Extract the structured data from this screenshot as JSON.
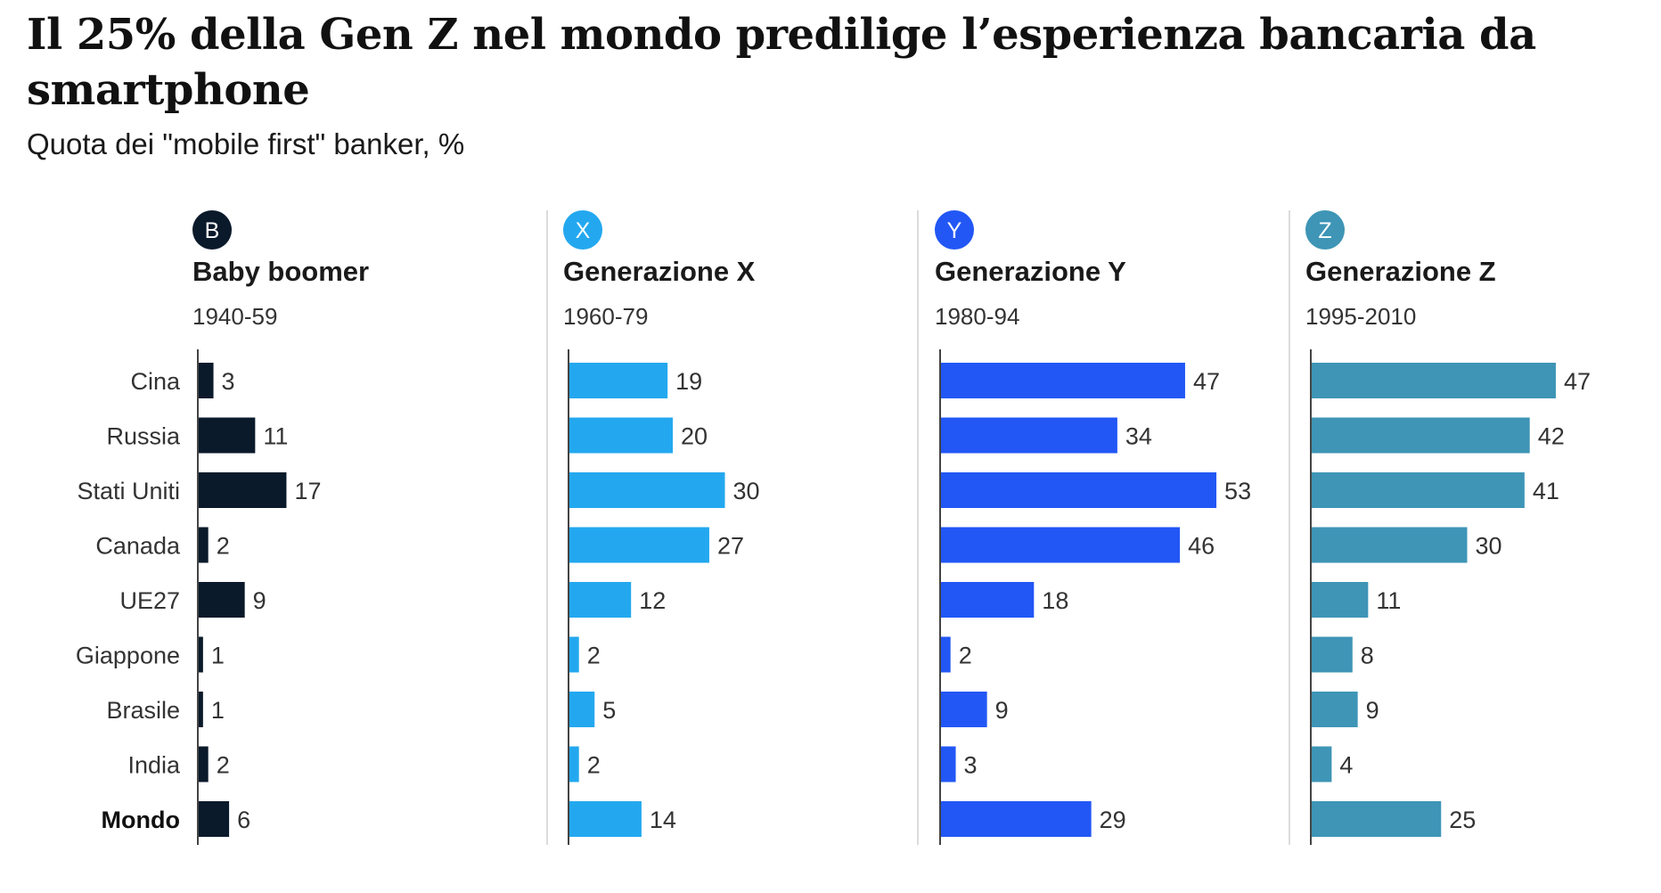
{
  "title": "Il 25% della Gen Z nel mondo predilige l’esperienza bancaria da smartphone",
  "subtitle": "Quota dei \"mobile first\" banker, %",
  "chart_data": {
    "type": "bar",
    "orientation": "horizontal",
    "title": "Il 25% della Gen Z nel mondo predilige l’esperienza bancaria da smartphone",
    "subtitle": "Quota dei \"mobile first\" banker, %",
    "categories": [
      "Cina",
      "Russia",
      "Stati Uniti",
      "Canada",
      "UE27",
      "Giappone",
      "Brasile",
      "India",
      "Mondo"
    ],
    "bold_category": "Mondo",
    "xlim": [
      0,
      60
    ],
    "grid": false,
    "series": [
      {
        "name": "Baby boomer",
        "badge": "B",
        "years": "1940-59",
        "color": "#0b1a2b",
        "values": [
          3,
          11,
          17,
          2,
          9,
          1,
          1,
          2,
          6
        ]
      },
      {
        "name": "Generazione X",
        "badge": "X",
        "years": "1960-79",
        "color": "#23a8ef",
        "values": [
          19,
          20,
          30,
          27,
          12,
          2,
          5,
          2,
          14
        ]
      },
      {
        "name": "Generazione Y",
        "badge": "Y",
        "years": "1980-94",
        "color": "#2257f5",
        "values": [
          47,
          34,
          53,
          46,
          18,
          2,
          9,
          3,
          29
        ]
      },
      {
        "name": "Generazione Z",
        "badge": "Z",
        "years": "1995-2010",
        "color": "#3e95b6",
        "values": [
          47,
          42,
          41,
          30,
          11,
          8,
          9,
          4,
          25
        ]
      }
    ]
  }
}
